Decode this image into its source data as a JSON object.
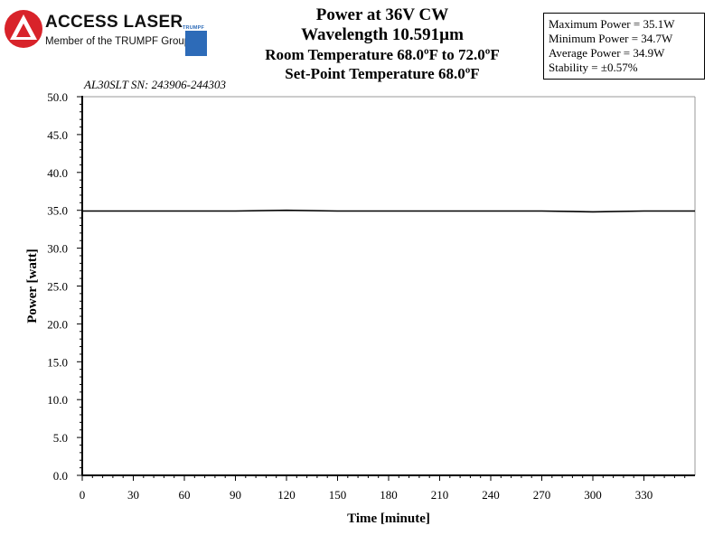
{
  "logo": {
    "name": "ACCESS LASER",
    "subtitle": "Member of the TRUMPF Group",
    "brand": "TRUMPF",
    "colors": {
      "red": "#d8232a",
      "blue": "#2d6bb8"
    }
  },
  "header": {
    "line1": "Power at 36V CW",
    "line2": "Wavelength 10.591µm",
    "line3": "Room Temperature 68.0ºF to 72.0ºF",
    "line4": "Set-Point Temperature 68.0ºF"
  },
  "stats": {
    "max": "Maximum Power = 35.1W",
    "min": "Minimum Power = 34.7W",
    "avg": "Average Power = 34.9W",
    "stability": "Stability = ±0.57%"
  },
  "serial": "AL30SLT SN: 243906-244303",
  "chart_data": {
    "type": "line",
    "xlabel": "Time [minute]",
    "ylabel": "Power [watt]",
    "xlim": [
      0,
      360
    ],
    "ylim": [
      0,
      50
    ],
    "xticks": [
      0,
      30,
      60,
      90,
      120,
      150,
      180,
      210,
      240,
      270,
      300,
      330
    ],
    "yticks": [
      0,
      5,
      10,
      15,
      20,
      25,
      30,
      35,
      40,
      45,
      50
    ],
    "ytick_labels": [
      "0.0",
      "5.0",
      "10.0",
      "15.0",
      "20.0",
      "25.0",
      "30.0",
      "35.0",
      "40.0",
      "45.0",
      "50.0"
    ],
    "grid": false,
    "line_color": "#000000",
    "series": [
      {
        "x": [
          0,
          30,
          60,
          90,
          120,
          150,
          180,
          210,
          240,
          270,
          300,
          330,
          360
        ],
        "values": [
          34.9,
          34.9,
          34.9,
          34.9,
          35.0,
          34.9,
          34.9,
          34.9,
          34.9,
          34.9,
          34.8,
          34.9,
          34.9
        ]
      }
    ]
  }
}
